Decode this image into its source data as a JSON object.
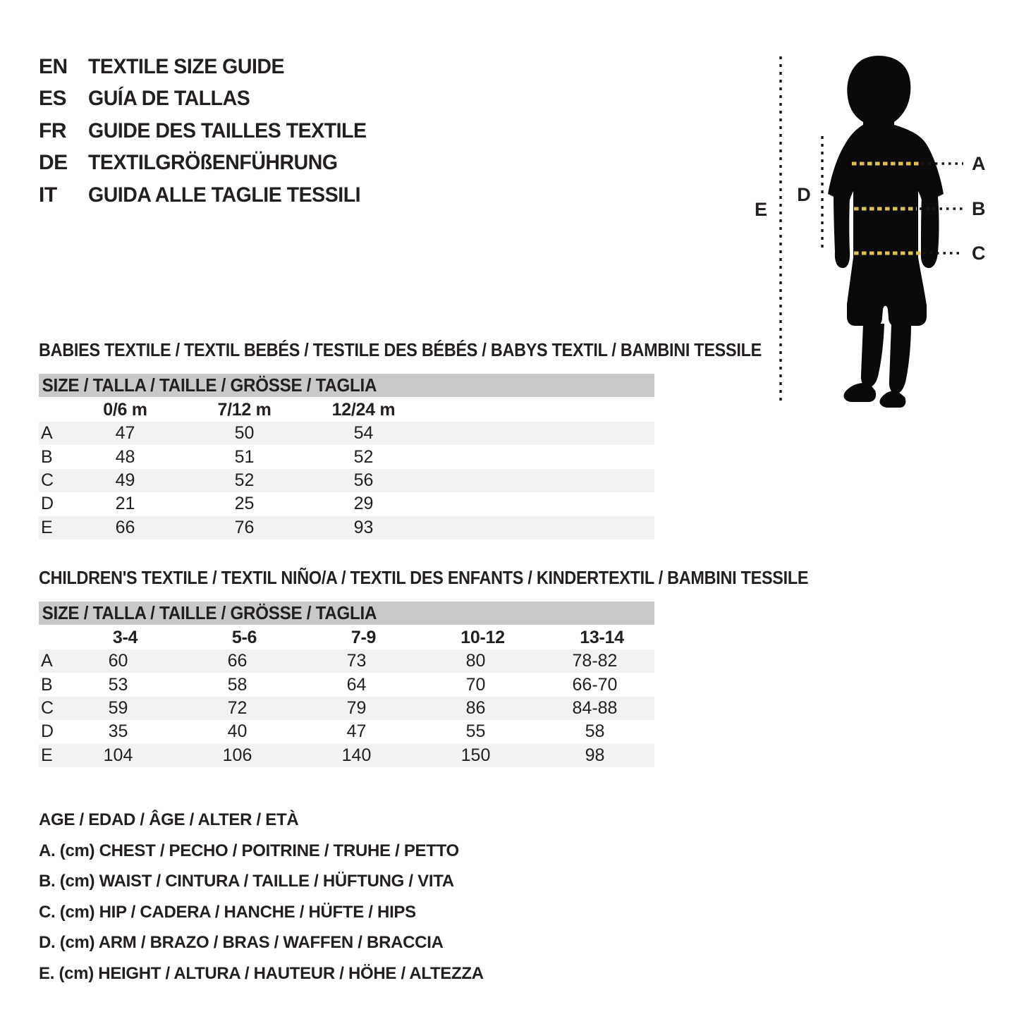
{
  "colors": {
    "ink": "#231f20",
    "table-header-bg": "#c9c9c9",
    "row-stripe": "#f2f2f2",
    "dash-yellow": "#ddc14d"
  },
  "languages": [
    {
      "code": "EN",
      "title": "TEXTILE SIZE GUIDE"
    },
    {
      "code": "ES",
      "title": "GUÍA DE TALLAS"
    },
    {
      "code": "FR",
      "title": "GUIDE DES TAILLES TEXTILE"
    },
    {
      "code": "DE",
      "title": "TEXTILGRÖßENFÜHRUNG"
    },
    {
      "code": "IT",
      "title": "GUIDA ALLE TAGLIE TESSILI"
    }
  ],
  "figure": {
    "label_a": "A",
    "label_b": "B",
    "label_c": "C",
    "label_d": "D",
    "label_e": "E"
  },
  "babies": {
    "section_title": "BABIES TEXTILE / TEXTIL BEBÉS / TESTILE DES BÉBÉS / BABYS TEXTIL / BAMBINI TESSILE",
    "header": "SIZE / TALLA / TAILLE / GRÖSSE / TAGLIA",
    "columns": [
      "0/6 m",
      "7/12 m",
      "12/24 m"
    ],
    "rows": [
      {
        "label": "A",
        "values": [
          "47",
          "50",
          "54"
        ]
      },
      {
        "label": "B",
        "values": [
          "48",
          "51",
          "52"
        ]
      },
      {
        "label": "C",
        "values": [
          "49",
          "52",
          "56"
        ]
      },
      {
        "label": "D",
        "values": [
          "21",
          "25",
          "29"
        ]
      },
      {
        "label": "E",
        "values": [
          "66",
          "76",
          "93"
        ]
      }
    ]
  },
  "children": {
    "section_title": "CHILDREN'S TEXTILE / TEXTIL NIÑO/A / TEXTIL DES ENFANTS / KINDERTEXTIL / BAMBINI TESSILE",
    "header": "SIZE / TALLA / TAILLE / GRÖSSE / TAGLIA",
    "columns": [
      "3-4",
      "5-6",
      "7-9",
      "10-12",
      "13-14"
    ],
    "rows": [
      {
        "label": "A",
        "values": [
          "60",
          "66",
          "73",
          "80",
          "78-82"
        ]
      },
      {
        "label": "B",
        "values": [
          "53",
          "58",
          "64",
          "70",
          "66-70"
        ]
      },
      {
        "label": "C",
        "values": [
          "59",
          "72",
          "79",
          "86",
          "84-88"
        ]
      },
      {
        "label": "D",
        "values": [
          "35",
          "40",
          "47",
          "55",
          "58"
        ]
      },
      {
        "label": "E",
        "values": [
          "104",
          "106",
          "140",
          "150",
          "98"
        ]
      }
    ]
  },
  "legend": {
    "lines": [
      "AGE / EDAD / ÂGE / ALTER / ETÀ",
      "A. (cm) CHEST / PECHO / POITRINE / TRUHE / PETTO",
      "B. (cm) WAIST / CINTURA / TAILLE / HÜFTUNG / VITA",
      "C. (cm) HIP / CADERA / HANCHE / HÜFTE / HIPS",
      "D. (cm) ARM / BRAZO / BRAS / WAFFEN / BRACCIA",
      "E. (cm) HEIGHT / ALTURA / HAUTEUR / HÖHE / ALTEZZA"
    ]
  }
}
